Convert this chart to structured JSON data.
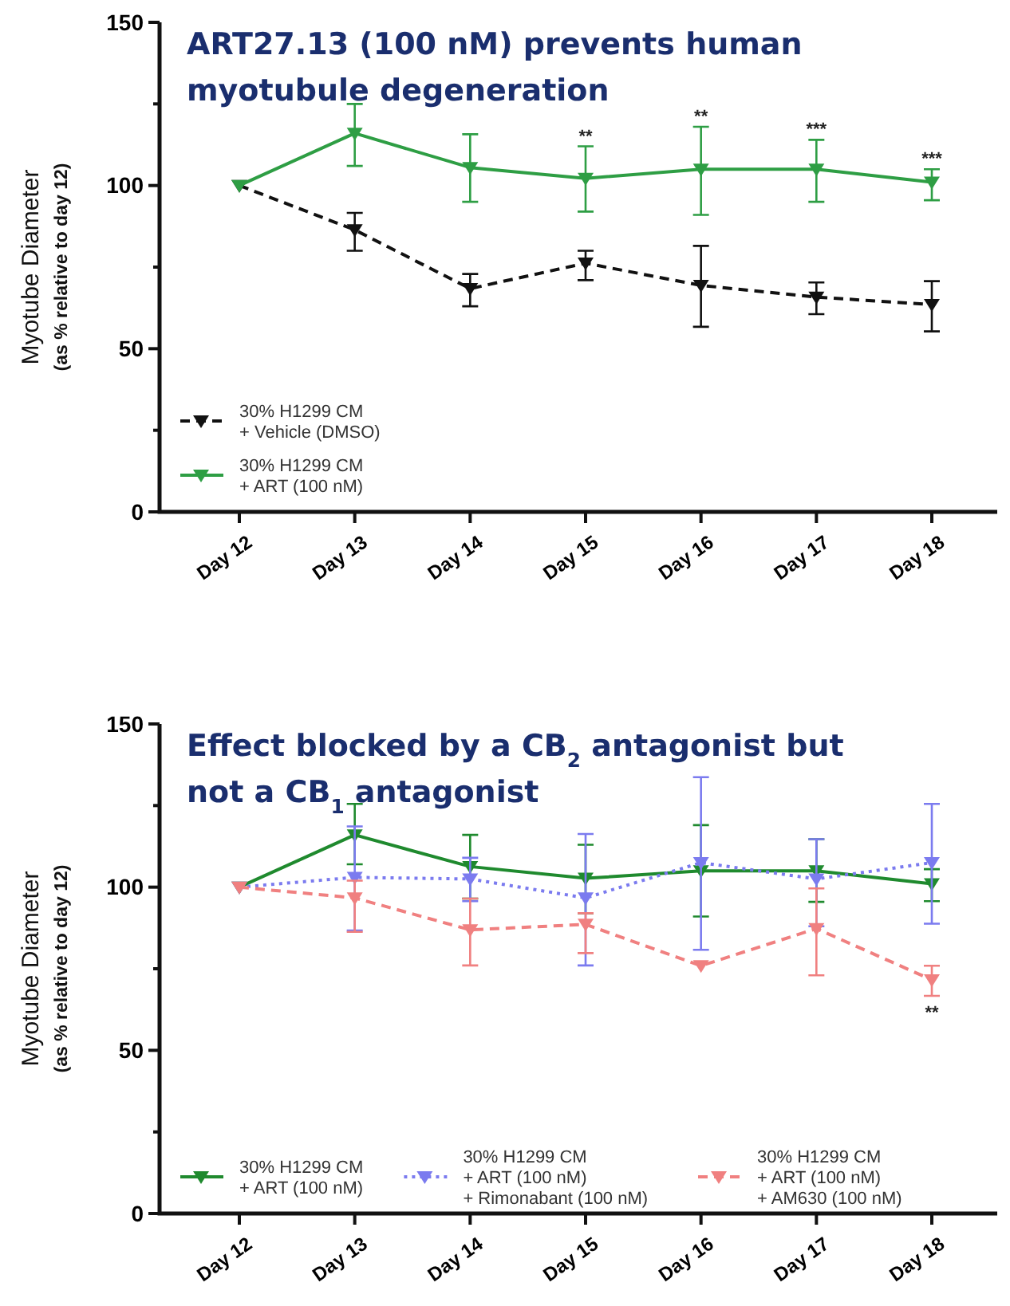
{
  "chart_data": [
    {
      "type": "line",
      "title": "ART27.13 (100 nM) prevents human myotubule degeneration",
      "ylabel": "Myotube Diameter\n(as % relative to day 12)",
      "categories": [
        "Day 12",
        "Day 13",
        "Day 14",
        "Day 15",
        "Day 16",
        "Day 17",
        "Day 18"
      ],
      "ylim": [
        0,
        150
      ],
      "yticks": [
        0,
        {
          "value": 25,
          "label": null
        },
        50,
        {
          "value": 75,
          "label": null
        },
        100,
        {
          "value": 125,
          "label": null
        },
        150
      ],
      "marker": "triangle",
      "legend": "bottom left",
      "grid": false,
      "series": [
        {
          "name": "30% H1299 CM\n+ Vehicle (DMSO)",
          "color": "#111111",
          "line_style": "dashed",
          "values": [
            100,
            86.4,
            68.4,
            76.2,
            69.4,
            65.8,
            63.5
          ],
          "errors": [
            null,
            [
              80,
              91.6
            ],
            [
              63,
              72.9
            ],
            [
              71,
              80
            ],
            [
              56.7,
              81.5
            ],
            [
              60.6,
              70.3
            ],
            [
              55.3,
              70.7
            ]
          ]
        },
        {
          "name": "30% H1299 CM\n+ ART (100 nM)",
          "color": "#2e9e44",
          "line_style": "solid",
          "values": [
            100,
            116,
            105.5,
            102.2,
            105,
            105,
            101
          ],
          "errors": [
            null,
            [
              106,
              125
            ],
            [
              95,
              115.7
            ],
            [
              92,
              112
            ],
            [
              91,
              118
            ],
            [
              95,
              114
            ],
            [
              95.5,
              105
            ]
          ]
        }
      ],
      "annotations": [
        {
          "text": "**",
          "x": "Day 15",
          "y": 102.2
        },
        {
          "text": "**",
          "x": "Day 16",
          "y": 105
        },
        {
          "text": "***",
          "x": "Day 17",
          "y": 105
        },
        {
          "text": "***",
          "x": "Day 18",
          "y": 101
        }
      ]
    },
    {
      "type": "line",
      "title": "Effect blocked by a CB$_{2}$ antagonist but not a CB$_{1}$ antagonist",
      "ylabel": "Myotube Diameter\n(as % relative to day 12)",
      "categories": [
        "Day 12",
        "Day 13",
        "Day 14",
        "Day 15",
        "Day 16",
        "Day 17",
        "Day 18"
      ],
      "ylim": [
        0,
        150
      ],
      "yticks": [
        0,
        {
          "value": 25,
          "label": null
        },
        50,
        {
          "value": 75,
          "label": null
        },
        100,
        {
          "value": 125,
          "label": null
        },
        150
      ],
      "marker": "triangle",
      "legend": "bottom",
      "grid": false,
      "series": [
        {
          "name": "30% H1299 CM\n+ ART (100 nM)",
          "color": "#1f8a2e",
          "line_style": "solid",
          "values": [
            100,
            116,
            106.3,
            102.7,
            105,
            105,
            101
          ],
          "errors": [
            null,
            [
              107,
              125.5
            ],
            [
              96.5,
              116
            ],
            [
              92,
              113
            ],
            [
              91,
              119
            ],
            [
              95.5,
              114.7
            ],
            [
              95.7,
              105.5
            ]
          ]
        },
        {
          "name": "30% H1299 CM\n+ ART (100 nM)\n+ Rimonabant (100 nM)",
          "color": "#7b7bef",
          "line_style": "dotted",
          "values": [
            100,
            103,
            102.5,
            96.7,
            107.5,
            102.5,
            107.5
          ],
          "errors": [
            null,
            [
              86.7,
              118.6
            ],
            [
              95.7,
              109
            ],
            [
              76,
              116.3
            ],
            [
              80.8,
              133.7
            ],
            [
              88,
              114.7
            ],
            [
              88.8,
              125.5
            ]
          ]
        },
        {
          "name": "30% H1299 CM\n+ ART (100 nM)\n+ AM630 (100 nM)",
          "color": "#f08080",
          "line_style": "dashed",
          "values": [
            100,
            96.7,
            86.9,
            88.6,
            75.9,
            87.3,
            71.6
          ],
          "errors": [
            null,
            [
              86.3,
              102
            ],
            [
              76,
              96.5
            ],
            [
              79.8,
              92
            ],
            null,
            [
              73,
              99.6
            ],
            [
              66.7,
              75.9
            ]
          ]
        }
      ],
      "annotations": [
        {
          "text": "**",
          "x": "Day 18",
          "y": 71.6
        }
      ]
    }
  ]
}
